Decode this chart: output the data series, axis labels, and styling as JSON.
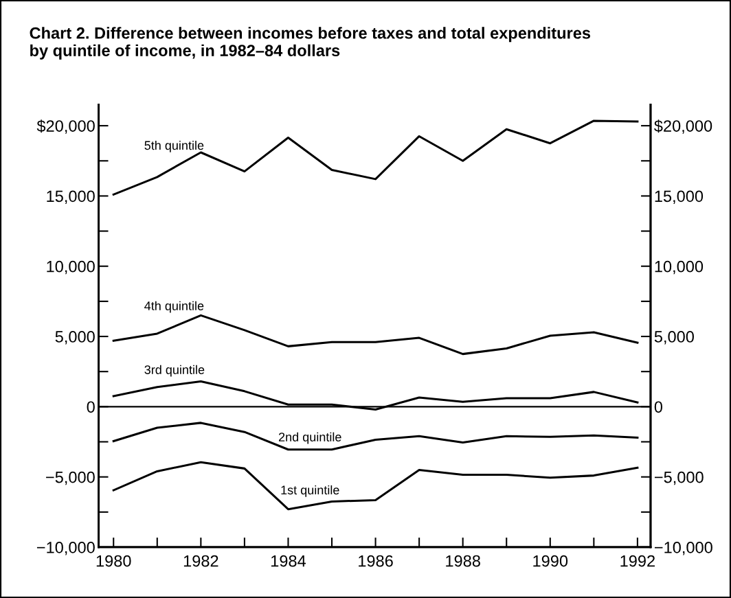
{
  "chart_data": {
    "type": "line",
    "title": "Chart 2. Difference between incomes before taxes and total expenditures\nby quintile of income, in 1982–84 dollars",
    "x": [
      1980,
      1981,
      1982,
      1983,
      1984,
      1985,
      1986,
      1987,
      1988,
      1989,
      1990,
      1991,
      1992
    ],
    "series": [
      {
        "name": "5th quintile",
        "color": "#000000",
        "values": [
          15100,
          16350,
          18100,
          16750,
          19150,
          16850,
          16200,
          19250,
          17500,
          19750,
          18750,
          20350,
          20300
        ]
      },
      {
        "name": "4th quintile",
        "color": "#000000",
        "values": [
          4700,
          5200,
          6500,
          5450,
          4300,
          4600,
          4600,
          4900,
          3750,
          4150,
          5050,
          5300,
          4550
        ]
      },
      {
        "name": "3rd quintile",
        "color": "#000000",
        "values": [
          750,
          1400,
          1800,
          1100,
          150,
          150,
          -200,
          650,
          350,
          600,
          600,
          1050,
          300
        ]
      },
      {
        "name": "2nd quintile",
        "color": "#000000",
        "values": [
          -2450,
          -1500,
          -1150,
          -1800,
          -3050,
          -3050,
          -2350,
          -2100,
          -2550,
          -2100,
          -2150,
          -2050,
          -2200
        ]
      },
      {
        "name": "1st quintile",
        "color": "#000000",
        "values": [
          -5950,
          -4600,
          -3950,
          -4400,
          -7300,
          -6750,
          -6650,
          -4500,
          -4850,
          -4850,
          -5050,
          -4900,
          -4350
        ]
      }
    ],
    "ref_lines": [
      {
        "axis": "y",
        "value": 0,
        "color": "#000000"
      }
    ],
    "xlim": [
      1979.66,
      1992.3
    ],
    "xticks": [
      1980,
      {
        "value": 1981,
        "label": null
      },
      1982,
      {
        "value": 1983,
        "label": null
      },
      1984,
      {
        "value": 1985,
        "label": null
      },
      1986,
      {
        "value": 1987,
        "label": null
      },
      1988,
      {
        "value": 1989,
        "label": null
      },
      1990,
      {
        "value": 1991,
        "label": null
      },
      1992
    ],
    "ylim": [
      -10000,
      21500
    ],
    "yticks": [
      {
        "value": -10000,
        "label": "−10,000"
      },
      {
        "value": -7500,
        "label": null
      },
      {
        "value": -5000,
        "label": "−5,000"
      },
      {
        "value": -2500,
        "label": null
      },
      0,
      {
        "value": 2500,
        "label": null
      },
      {
        "value": 5000,
        "label": "5,000"
      },
      {
        "value": 7500,
        "label": null
      },
      {
        "value": 10000,
        "label": "10,000"
      },
      {
        "value": 12500,
        "label": null
      },
      {
        "value": 15000,
        "label": "15,000"
      },
      {
        "value": 17500,
        "label": null
      },
      {
        "value": 20000,
        "label": "$20,000"
      }
    ],
    "y2lim": [
      -10000,
      21500
    ],
    "y2ticks": [
      {
        "value": -10000,
        "label": "−10,000"
      },
      {
        "value": -7500,
        "label": null
      },
      {
        "value": -5000,
        "label": "−5,000"
      },
      {
        "value": -2500,
        "label": null
      },
      0,
      {
        "value": 2500,
        "label": null
      },
      {
        "value": 5000,
        "label": "5,000"
      },
      {
        "value": 7500,
        "label": null
      },
      {
        "value": 10000,
        "label": "10,000"
      },
      {
        "value": 12500,
        "label": null
      },
      {
        "value": 15000,
        "label": "15,000"
      },
      {
        "value": 17500,
        "label": null
      },
      {
        "value": 20000,
        "label": "$20,000"
      }
    ],
    "grid": false,
    "legend": false,
    "marker": "none",
    "line_style": "solid"
  }
}
